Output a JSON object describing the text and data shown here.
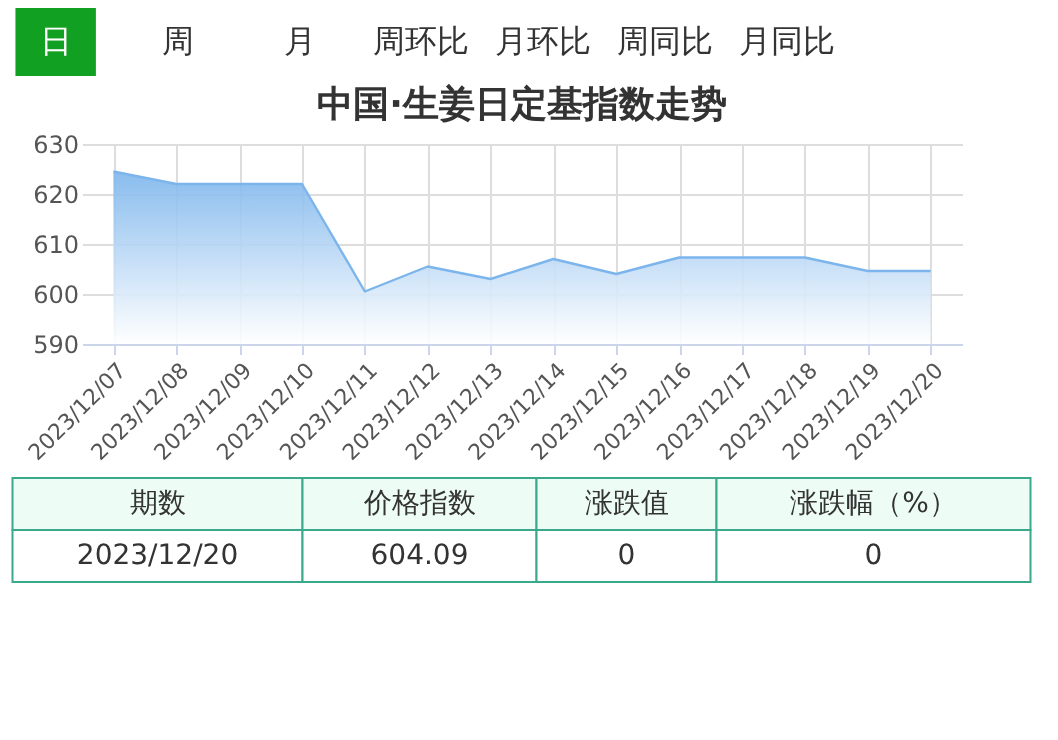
{
  "chart_data": {
    "type": "area",
    "title": "中国·生姜日定基指数走势",
    "categories": [
      "2023/12/07",
      "2023/12/08",
      "2023/12/09",
      "2023/12/10",
      "2023/12/11",
      "2023/12/12",
      "2023/12/13",
      "2023/12/14",
      "2023/12/15",
      "2023/12/16",
      "2023/12/17",
      "2023/12/18",
      "2023/12/19",
      "2023/12/20"
    ],
    "series": [
      {
        "color": "#7cb5ec",
        "values": [
          624.5,
          622,
          622,
          622,
          600.5,
          605.5,
          603,
          607,
          604,
          607.3,
          607.3,
          607.3,
          604.6,
          604.6
        ]
      }
    ],
    "ylim": [
      590,
      630
    ],
    "yticks": [
      590,
      600,
      610,
      620,
      630
    ],
    "grid": true,
    "annotations": [
      "日",
      "周",
      "月",
      "周环比",
      "月环比",
      "周同比",
      "月同比",
      "期数",
      "价格指数",
      "涨跌值",
      "涨跌幅（%）",
      "2023/12/20",
      "604.09",
      "0",
      "0"
    ]
  }
}
